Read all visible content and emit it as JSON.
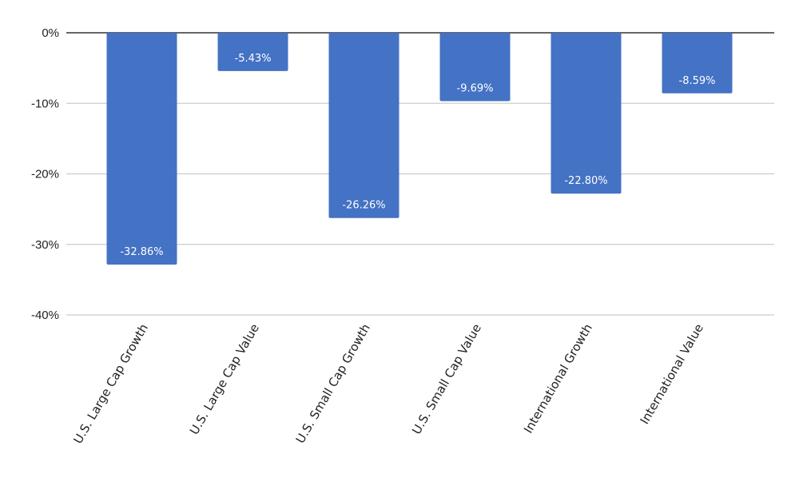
{
  "chart_data": {
    "type": "bar",
    "categories": [
      "U.S. Large Cap Growth",
      "U.S. Large Cap Value",
      "U.S. Small Cap Growth",
      "U.S. Small Cap Value",
      "International Growth",
      "International Value"
    ],
    "values": [
      -32.86,
      -5.43,
      -26.26,
      -9.69,
      -22.8,
      -8.59
    ],
    "data_labels": [
      "-32.86%",
      "-5.43%",
      "-26.26%",
      "-9.69%",
      "-22.80%",
      "-8.59%"
    ],
    "y_ticks": [
      0,
      -10,
      -20,
      -30,
      -40
    ],
    "y_tick_labels": [
      "0%",
      "-10%",
      "-20%",
      "-30%",
      "-40%"
    ],
    "ylim": [
      -40,
      0
    ],
    "title": "",
    "xlabel": "",
    "ylabel": "",
    "grid": true,
    "bar_color": "#4472c4",
    "grid_color": "#cccccc"
  }
}
